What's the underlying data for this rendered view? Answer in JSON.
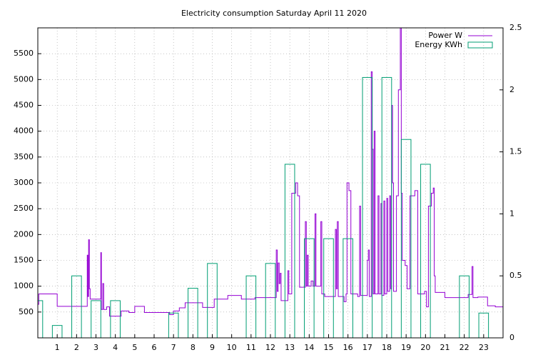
{
  "chart_data": {
    "type": "combo",
    "title": "Electricity consumption Saturday April 11 2020",
    "xlim": [
      0,
      24
    ],
    "xticks": [
      1,
      2,
      3,
      4,
      5,
      6,
      7,
      8,
      9,
      10,
      11,
      12,
      13,
      14,
      15,
      16,
      17,
      18,
      19,
      20,
      21,
      22,
      23
    ],
    "ylim": [
      0,
      6000
    ],
    "yticks": [
      500,
      1000,
      1500,
      2000,
      2500,
      3000,
      3500,
      4000,
      4500,
      5000,
      5500
    ],
    "y2lim": [
      0,
      2.5
    ],
    "y2ticks": [
      0,
      0.5,
      1,
      1.5,
      2,
      2.5
    ],
    "grid": true,
    "legend": "top-right",
    "series": [
      {
        "name": "Power W",
        "type": "line",
        "line_style": "steps",
        "color": "#9400d3",
        "x": [
          0.0,
          0.05,
          1.0,
          2.55,
          2.58,
          2.62,
          2.66,
          2.7,
          3.25,
          3.28,
          3.35,
          3.4,
          3.55,
          3.7,
          4.3,
          4.7,
          5.0,
          5.5,
          6.8,
          7.0,
          7.3,
          7.6,
          8.5,
          9.1,
          9.8,
          10.5,
          11.2,
          12.3,
          12.35,
          12.4,
          12.45,
          12.5,
          12.55,
          12.9,
          12.95,
          13.1,
          13.3,
          13.4,
          13.5,
          13.8,
          13.85,
          13.9,
          13.95,
          14.1,
          14.2,
          14.3,
          14.35,
          14.6,
          14.65,
          14.8,
          15.35,
          15.4,
          15.45,
          15.5,
          15.8,
          15.9,
          15.95,
          16.05,
          16.15,
          16.5,
          16.6,
          16.65,
          17.0,
          17.05,
          17.1,
          17.2,
          17.25,
          17.3,
          17.35,
          17.4,
          17.55,
          17.6,
          17.7,
          17.75,
          17.85,
          17.9,
          18.0,
          18.05,
          18.15,
          18.2,
          18.25,
          18.3,
          18.35,
          18.5,
          18.6,
          18.7,
          18.75,
          18.8,
          18.95,
          19.05,
          19.2,
          19.45,
          19.6,
          19.95,
          20.05,
          20.15,
          20.3,
          20.4,
          20.45,
          20.5,
          21.0,
          22.2,
          22.4,
          22.45,
          22.7,
          23.2,
          23.6,
          24.0
        ],
        "values": [
          650,
          850,
          610,
          1600,
          800,
          1900,
          950,
          750,
          1650,
          550,
          1050,
          550,
          600,
          420,
          520,
          490,
          610,
          490,
          450,
          520,
          580,
          680,
          590,
          750,
          820,
          750,
          780,
          1700,
          900,
          1450,
          1050,
          1250,
          720,
          1300,
          850,
          2800,
          3000,
          2750,
          980,
          2250,
          1000,
          1600,
          1000,
          1100,
          1000,
          2400,
          1000,
          2250,
          850,
          800,
          2100,
          950,
          2250,
          800,
          700,
          850,
          3000,
          2850,
          850,
          800,
          2550,
          820,
          1500,
          1700,
          800,
          5150,
          3650,
          850,
          4000,
          850,
          2750,
          850,
          2600,
          820,
          2650,
          850,
          2700,
          900,
          2750,
          950,
          4500,
          3000,
          900,
          2750,
          4800,
          6000,
          2800,
          1500,
          1400,
          950,
          2750,
          2850,
          850,
          900,
          600,
          2550,
          2800,
          2900,
          1200,
          880,
          780,
          840,
          1380,
          780,
          790,
          620,
          600,
          600
        ]
      },
      {
        "name": "Energy KWh",
        "type": "bar",
        "axis": "y2",
        "color": "#009e73",
        "bar_width": 0.5,
        "x": [
          0,
          1,
          2,
          3,
          4,
          5,
          6,
          7,
          8,
          9,
          10,
          11,
          12,
          13,
          14,
          15,
          16,
          17,
          18,
          19,
          20,
          21,
          22,
          23
        ],
        "values": [
          0.3,
          0.1,
          0.5,
          0.3,
          0.3,
          0,
          0,
          0.2,
          0.4,
          0.6,
          0,
          0.5,
          0.6,
          1.4,
          0.8,
          0.8,
          0.8,
          2.1,
          2.1,
          1.6,
          1.4,
          0,
          0.5,
          0.2
        ]
      }
    ]
  }
}
